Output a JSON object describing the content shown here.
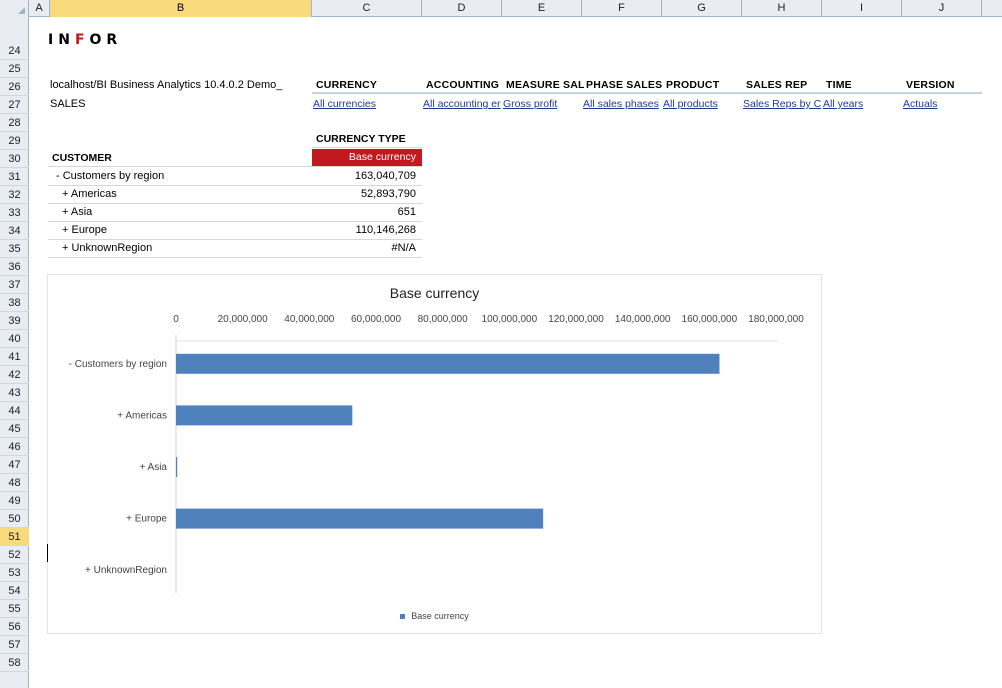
{
  "columns": [
    {
      "label": "A",
      "width": 21
    },
    {
      "label": "B",
      "width": 262,
      "selected": true
    },
    {
      "label": "C",
      "width": 110
    },
    {
      "label": "D",
      "width": 80
    },
    {
      "label": "E",
      "width": 80
    },
    {
      "label": "F",
      "width": 80
    },
    {
      "label": "G",
      "width": 80
    },
    {
      "label": "H",
      "width": 80
    },
    {
      "label": "I",
      "width": 80
    },
    {
      "label": "J",
      "width": 80
    }
  ],
  "rows": [
    "24",
    "25",
    "26",
    "27",
    "28",
    "29",
    "30",
    "31",
    "32",
    "33",
    "34",
    "35",
    "36",
    "37",
    "38",
    "39",
    "40",
    "41",
    "42",
    "43",
    "44",
    "45",
    "46",
    "47",
    "48",
    "49",
    "50",
    "51",
    "52",
    "53",
    "54",
    "55",
    "56",
    "57",
    "58"
  ],
  "selected_row": "51",
  "logo": {
    "text_left": "IN",
    "text_red": "F",
    "text_right": "OR",
    "accent": "#c0191f"
  },
  "header": {
    "connection": "localhost/BI Business Analytics 10.4.0.2 Demo_",
    "cube": "SALES",
    "dimensions": [
      {
        "name": "CURRENCY",
        "value": "All currencies"
      },
      {
        "name": "ACCOUNTING",
        "value": "All accounting er"
      },
      {
        "name": "MEASURE SAL",
        "value": "Gross profit"
      },
      {
        "name": "PHASE SALES",
        "value": "All sales phases"
      },
      {
        "name": "PRODUCT",
        "value": "All products"
      },
      {
        "name": "SALES REP",
        "value": "Sales Reps by C"
      },
      {
        "name": "TIME",
        "value": "All years"
      },
      {
        "name": "VERSION",
        "value": "Actuals"
      }
    ]
  },
  "table": {
    "col_dim_label": "CURRENCY TYPE",
    "row_dim_label": "CUSTOMER",
    "col_member": "Base currency",
    "rows": [
      {
        "label": "- Customers by region",
        "value": "163,040,709"
      },
      {
        "label": "+ Americas",
        "value": "52,893,790"
      },
      {
        "label": "+ Asia",
        "value": "651"
      },
      {
        "label": "+ Europe",
        "value": "110,146,268"
      },
      {
        "label": "+ UnknownRegion",
        "value": "#N/A"
      }
    ]
  },
  "chart_data": {
    "type": "bar",
    "orientation": "horizontal",
    "title": "Base currency",
    "categories": [
      "- Customers by region",
      "+ Americas",
      "+ Asia",
      "+ Europe",
      "+ UnknownRegion"
    ],
    "series": [
      {
        "name": "Base currency",
        "values": [
          163040709,
          52893790,
          651,
          110146268,
          null
        ],
        "color": "#4f81bd"
      }
    ],
    "xlim": [
      0,
      180000000
    ],
    "xticks": [
      "0",
      "20,000,000",
      "40,000,000",
      "60,000,000",
      "80,000,000",
      "100,000,000",
      "120,000,000",
      "140,000,000",
      "160,000,000",
      "180,000,000"
    ],
    "tick_values": [
      0,
      20000000,
      40000000,
      60000000,
      80000000,
      100000000,
      120000000,
      140000000,
      160000000,
      180000000
    ],
    "axis_position": "top",
    "grid": false,
    "legend": "bottom"
  }
}
